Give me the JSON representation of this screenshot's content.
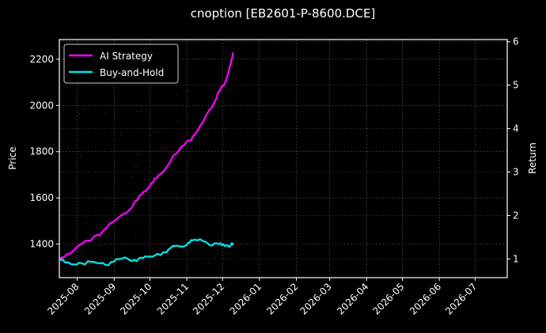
{
  "chart_data": {
    "type": "line",
    "title": "cnoption [EB2601-P-8600.DCE]",
    "xlabel": "",
    "ylabel": "Price",
    "y2label": "Return",
    "ylim": [
      1255,
      2285
    ],
    "y2lim": [
      0.57,
      6.05
    ],
    "yticks": [
      1400,
      1600,
      1800,
      2000,
      2200
    ],
    "y2ticks": [
      1,
      2,
      3,
      4,
      5,
      6
    ],
    "xticks": [
      "2025-08",
      "2025-09",
      "2025-10",
      "2025-11",
      "2025-12",
      "2026-01",
      "2026-02",
      "2026-03",
      "2026-04",
      "2026-05",
      "2026-06",
      "2026-07"
    ],
    "xlim": [
      "2025-07-17",
      "2026-07-28"
    ],
    "grid": true,
    "legend_position": "upper left",
    "series": [
      {
        "name": "AI Strategy",
        "color": "#ff00ff",
        "axis": "right",
        "x": [
          "2025-07-17",
          "2025-07-25",
          "2025-08-01",
          "2025-08-10",
          "2025-08-20",
          "2025-08-31",
          "2025-09-08",
          "2025-09-15",
          "2025-09-22",
          "2025-09-30",
          "2025-10-05",
          "2025-10-12",
          "2025-10-20",
          "2025-10-28",
          "2025-11-03",
          "2025-11-10",
          "2025-11-17",
          "2025-11-24",
          "2025-11-30",
          "2025-12-04",
          "2025-12-08",
          "2025-12-10"
        ],
        "values": [
          1.0,
          1.12,
          1.28,
          1.42,
          1.55,
          1.85,
          2.02,
          2.15,
          2.45,
          2.65,
          2.85,
          3.0,
          3.35,
          3.6,
          3.72,
          3.95,
          4.3,
          4.6,
          4.95,
          5.1,
          5.5,
          5.75
        ]
      },
      {
        "name": "Buy-and-Hold",
        "color": "#00e5e5",
        "axis": "right",
        "x": [
          "2025-07-17",
          "2025-07-22",
          "2025-07-27",
          "2025-08-05",
          "2025-08-15",
          "2025-08-25",
          "2025-09-03",
          "2025-09-12",
          "2025-09-20",
          "2025-09-27",
          "2025-10-05",
          "2025-10-15",
          "2025-10-22",
          "2025-11-01",
          "2025-11-06",
          "2025-11-14",
          "2025-11-20",
          "2025-11-28",
          "2025-12-03",
          "2025-12-07",
          "2025-12-10"
        ],
        "values": [
          1.0,
          0.92,
          0.88,
          0.9,
          0.93,
          0.86,
          1.0,
          1.01,
          0.95,
          1.06,
          1.08,
          1.15,
          1.3,
          1.32,
          1.43,
          1.42,
          1.32,
          1.34,
          1.3,
          1.28,
          1.37
        ]
      }
    ]
  },
  "legend": {
    "items": [
      {
        "label": "AI Strategy",
        "color": "#ff00ff"
      },
      {
        "label": "Buy-and-Hold",
        "color": "#00e5e5"
      }
    ]
  }
}
